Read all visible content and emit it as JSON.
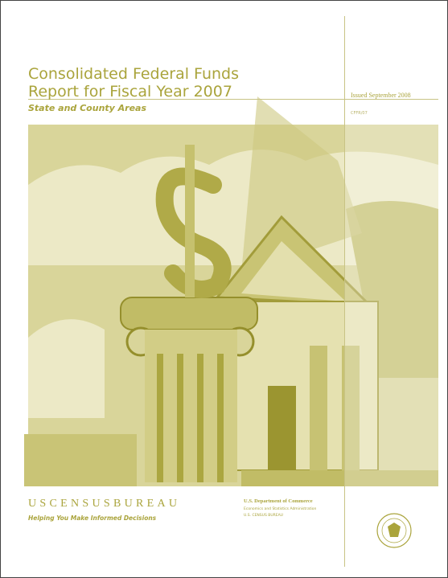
{
  "header": {
    "title_lines": [
      "Consolidated Federal Funds",
      "Report for Fiscal Year 2007"
    ],
    "subtitle": "State and County Areas",
    "issued": "Issued September 2008",
    "report_code": "CFFR/07"
  },
  "footer": {
    "agency": "USCENSUSBUREAU",
    "tagline": "Helping You Make Informed Decisions",
    "department_lines": [
      "U.S. Department of Commerce",
      "Economics and Statistics Administration",
      "U.S. CENSUS BUREAU"
    ]
  }
}
